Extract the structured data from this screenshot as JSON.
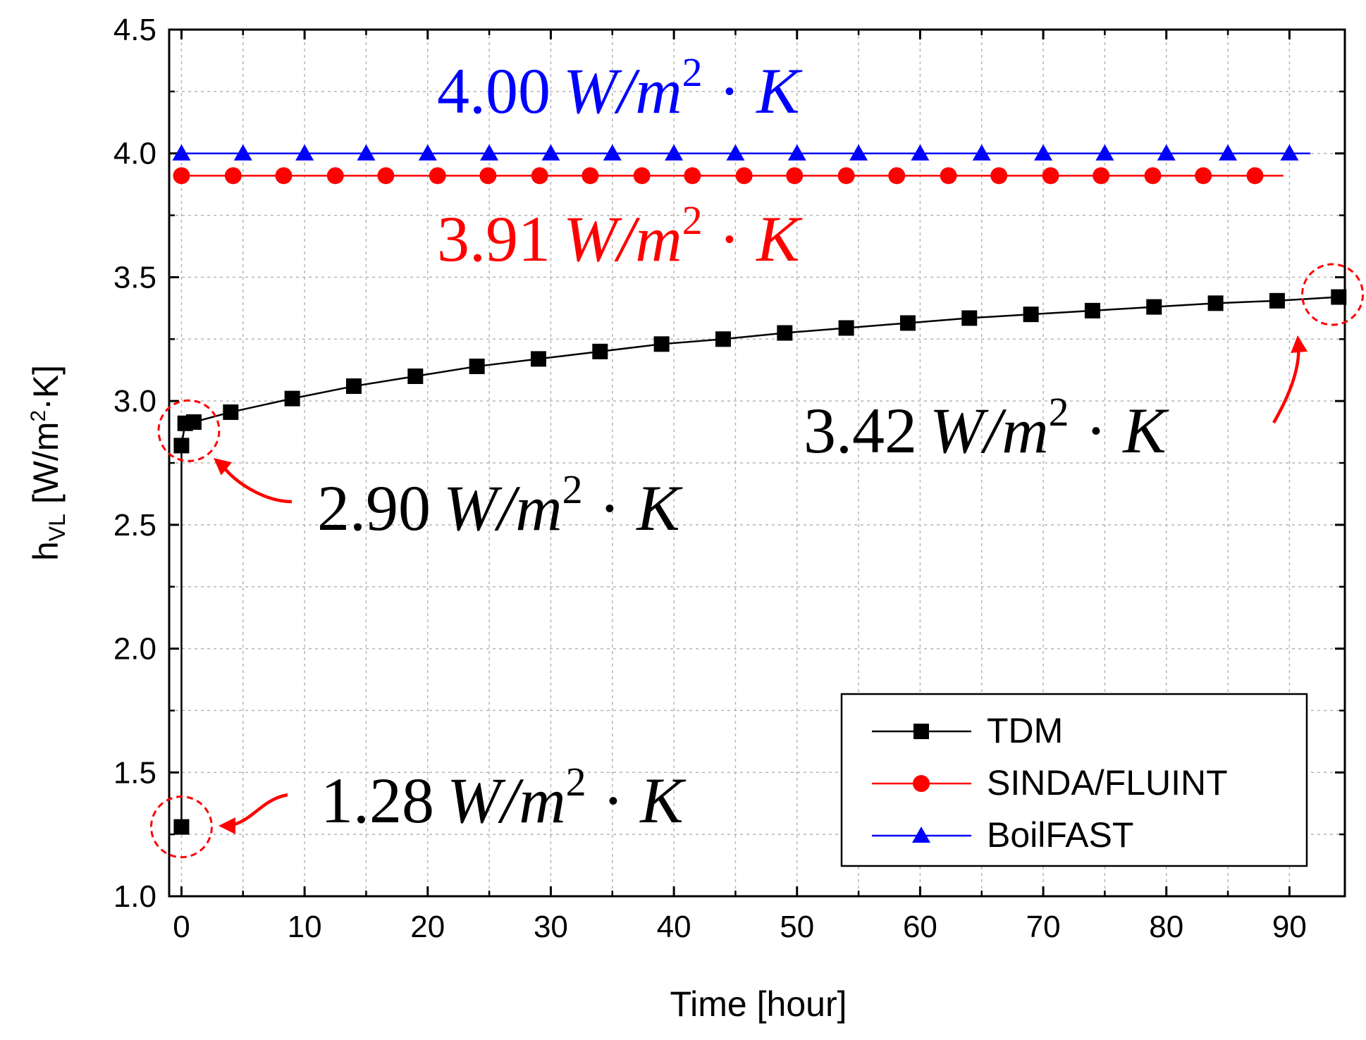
{
  "chart_data": {
    "type": "line",
    "xlabel": "Time [hour]",
    "ylabel": {
      "main": "h",
      "sub": "VL",
      "unit_pre": " [W/m",
      "unit_sup": "2",
      "unit_post": "·K]"
    },
    "xlim": [
      -1,
      94.5
    ],
    "ylim": [
      1.0,
      4.5
    ],
    "grid": true,
    "xticks": [
      {
        "value": 0,
        "label": "0"
      },
      {
        "value": 10,
        "label": "10"
      },
      {
        "value": 20,
        "label": "20"
      },
      {
        "value": 30,
        "label": "30"
      },
      {
        "value": 40,
        "label": "40"
      },
      {
        "value": 50,
        "label": "50"
      },
      {
        "value": 60,
        "label": "60"
      },
      {
        "value": 70,
        "label": "70"
      },
      {
        "value": 80,
        "label": "80"
      },
      {
        "value": 90,
        "label": "90"
      }
    ],
    "yticks": [
      {
        "value": 1.0,
        "label": "1.0"
      },
      {
        "value": 1.5,
        "label": "1.5"
      },
      {
        "value": 2.0,
        "label": "2.0"
      },
      {
        "value": 2.5,
        "label": "2.5"
      },
      {
        "value": 3.0,
        "label": "3.0"
      },
      {
        "value": 3.5,
        "label": "3.5"
      },
      {
        "value": 4.0,
        "label": "4.0"
      },
      {
        "value": 4.5,
        "label": "4.5"
      }
    ],
    "series": [
      {
        "name": "TDM",
        "color": "#000000",
        "marker": "square",
        "x": [
          0,
          0,
          0.3,
          1,
          4,
          9,
          14,
          19,
          24,
          29,
          34,
          39,
          44,
          49,
          54,
          59,
          64,
          69,
          74,
          79,
          84,
          89,
          94
        ],
        "y": [
          1.28,
          2.82,
          2.91,
          2.915,
          2.955,
          3.01,
          3.06,
          3.1,
          3.14,
          3.17,
          3.2,
          3.23,
          3.25,
          3.275,
          3.295,
          3.315,
          3.335,
          3.35,
          3.365,
          3.38,
          3.395,
          3.405,
          3.42
        ]
      },
      {
        "name": "SINDA/FLUINT",
        "color": "#ff0000",
        "marker": "circle",
        "line_x": [
          0,
          89.5
        ],
        "x": [
          0,
          4.2,
          8.3,
          12.5,
          16.6,
          20.8,
          24.9,
          29.1,
          33.2,
          37.4,
          41.5,
          45.7,
          49.8,
          54.0,
          58.1,
          62.3,
          66.4,
          70.6,
          74.7,
          78.9,
          83.0,
          87.2
        ],
        "y": [
          3.91,
          3.91,
          3.91,
          3.91,
          3.91,
          3.91,
          3.91,
          3.91,
          3.91,
          3.91,
          3.91,
          3.91,
          3.91,
          3.91,
          3.91,
          3.91,
          3.91,
          3.91,
          3.91,
          3.91,
          3.91,
          3.91
        ]
      },
      {
        "name": "BoilFAST",
        "color": "#0000ff",
        "marker": "triangle",
        "line_x": [
          0,
          91.7
        ],
        "x": [
          0,
          5,
          10,
          15,
          20,
          25,
          30,
          35,
          40,
          45,
          50,
          55,
          60,
          65,
          70,
          75,
          80,
          85,
          90
        ],
        "y": [
          4.0,
          4.0,
          4.0,
          4.0,
          4.0,
          4.0,
          4.0,
          4.0,
          4.0,
          4.0,
          4.0,
          4.0,
          4.0,
          4.0,
          4.0,
          4.0,
          4.0,
          4.0,
          4.0
        ]
      }
    ],
    "legend": {
      "placement": "bottom-right",
      "entries": [
        "TDM",
        "SINDA/FLUINT",
        "BoilFAST"
      ]
    },
    "annotations": [
      {
        "id": "boilfast",
        "value": "4.00",
        "unit_w": "W",
        "slash": "/",
        "unit_m": "m",
        "sup": "2",
        "dot": " · ",
        "unit_k": "K",
        "color": "#0000ff"
      },
      {
        "id": "sinda",
        "value": "3.91",
        "unit_w": "W",
        "slash": "/",
        "unit_m": "m",
        "sup": "2",
        "dot": " · ",
        "unit_k": "K",
        "color": "#ff0000"
      },
      {
        "id": "tdm-end",
        "value": "3.42",
        "unit_w": "W",
        "slash": "/",
        "unit_m": "m",
        "sup": "2",
        "dot": " · ",
        "unit_k": "K",
        "color": "#000000",
        "target": {
          "x": 94,
          "y": 3.42
        }
      },
      {
        "id": "tdm-mid",
        "value": "2.90",
        "unit_w": "W",
        "slash": "/",
        "unit_m": "m",
        "sup": "2",
        "dot": " · ",
        "unit_k": "K",
        "color": "#000000",
        "target": {
          "x": 0.5,
          "y": 2.9
        }
      },
      {
        "id": "tdm-start",
        "value": "1.28",
        "unit_w": "W",
        "slash": "/",
        "unit_m": "m",
        "sup": "2",
        "dot": " · ",
        "unit_k": "K",
        "color": "#000000",
        "target": {
          "x": 0,
          "y": 1.28
        }
      }
    ],
    "highlight_color": "#ff0000"
  }
}
